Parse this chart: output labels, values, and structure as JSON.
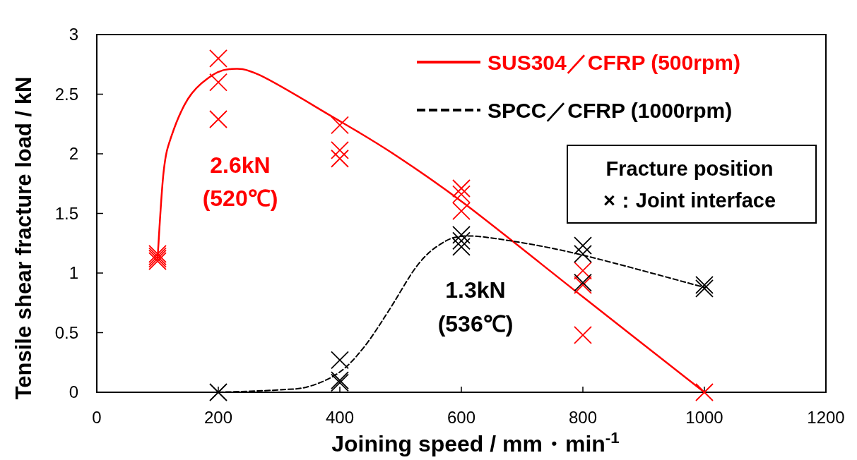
{
  "chart_data": {
    "type": "scatter",
    "xlabel": "Joining speed / mm・min$^{-1}$",
    "ylabel": "Tensile shear fracture load / kN",
    "xlim": [
      0,
      1200
    ],
    "xticks": [
      0,
      200,
      400,
      600,
      800,
      1000,
      1200
    ],
    "ylim": [
      0,
      3
    ],
    "yticks": [
      0,
      0.5,
      1,
      1.5,
      2,
      2.5,
      3
    ],
    "grid": false,
    "legend": "top right",
    "series": [
      {
        "type": "line",
        "name": "SUS304／CFRP (500rpm)",
        "color": "#ff0000",
        "line_style": "solid",
        "x": [
          100,
          110,
          123,
          150,
          182,
          218,
          268,
          388,
          485,
          603,
          800,
          1000
        ],
        "values": [
          1.12,
          1.85,
          2.15,
          2.46,
          2.63,
          2.71,
          2.66,
          2.31,
          2.01,
          1.59,
          0.8,
          0
        ]
      },
      {
        "type": "line",
        "name": "SPCC／CFRP (1000rpm)",
        "color": "#000000",
        "line_style": "dashed",
        "x": [
          200,
          300,
          350,
          400,
          440,
          480,
          527,
          565,
          605,
          681,
          800,
          1000
        ],
        "values": [
          0,
          0.02,
          0.05,
          0.17,
          0.38,
          0.68,
          1.06,
          1.24,
          1.31,
          1.27,
          1.15,
          0.88
        ]
      },
      {
        "marker": "cross",
        "color": "#ff0000",
        "x": [
          100,
          100,
          100,
          100,
          200,
          200,
          200,
          400,
          400,
          400,
          600,
          600,
          600,
          800,
          800,
          800,
          1000
        ],
        "values": [
          1.1,
          1.12,
          1.14,
          1.16,
          2.8,
          2.6,
          2.29,
          2.24,
          2.03,
          1.96,
          1.71,
          1.66,
          1.52,
          1.02,
          0.9,
          0.48,
          0
        ]
      },
      {
        "marker": "cross",
        "color": "#000000",
        "x": [
          200,
          400,
          400,
          400,
          600,
          600,
          600,
          800,
          800,
          800,
          1000,
          1000
        ],
        "values": [
          0,
          0.27,
          0.1,
          0.08,
          1.32,
          1.27,
          1.22,
          1.23,
          1.16,
          0.92,
          0.9,
          0.87
        ]
      }
    ],
    "annotations": [
      "2.6kN",
      "(520℃)",
      "1.3kN",
      "(536℃)",
      "Fracture position",
      "×：Joint interface"
    ]
  }
}
